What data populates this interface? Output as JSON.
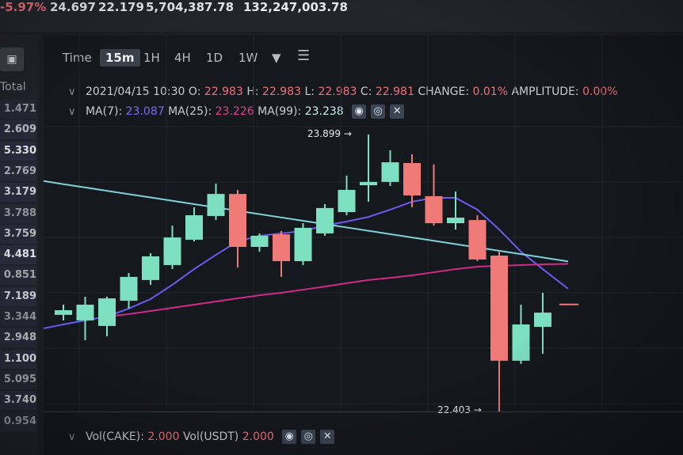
{
  "ticker_bar": {
    "change_pct": "-5.97%",
    "high": "24.697",
    "low": "22.179",
    "vol_base": "5,704,387.78",
    "vol_quote": "132,247,003.78"
  },
  "sidebar": {
    "header": "Total",
    "totals": [
      "1.471",
      "2.609",
      "5.330",
      "2.769",
      "3.179",
      "3.788",
      "3.759",
      "4.481",
      "0.851",
      "7.189",
      "3.344",
      "2.948",
      "1.100",
      "5.095",
      "3.740",
      "0.954"
    ]
  },
  "toolbar": {
    "timeframes": [
      "Time",
      "15m",
      "1H",
      "4H",
      "1D",
      "1W"
    ],
    "active": "15m",
    "more_icon": "triangle-down",
    "settings_icon": "sliders"
  },
  "ohlc": {
    "datetime": "2021/04/15 10:30",
    "o_label": "O:",
    "o": "22.983",
    "h_label": "H:",
    "h": "22.983",
    "l_label": "L:",
    "l": "22.983",
    "c_label": "C:",
    "c": "22.981",
    "change_label": "CHANGE:",
    "change": "0.01%",
    "amplitude_label": "AMPLITUDE:",
    "amplitude": "0.00%"
  },
  "ma": {
    "ma7_label": "MA(7):",
    "ma7": "23.087",
    "ma25_label": "MA(25):",
    "ma25": "23.226",
    "ma99_label": "MA(99):",
    "ma99": "23.238"
  },
  "volume": {
    "base_label": "Vol(CAKE):",
    "base": "2.000",
    "quote_label": "Vol(USDT)",
    "quote": "2.000"
  },
  "colors": {
    "up": "#7de0c0",
    "down": "#f07a78",
    "ma7": "#6a5cf0",
    "ma25": "#d02a8a",
    "ma99": "#7fd0d8",
    "background": "#15181d"
  },
  "chart_data": {
    "type": "candlestick",
    "interval": "15m",
    "ylim": [
      22.403,
      23.899
    ],
    "annotations": {
      "max": "23.899",
      "min": "22.403"
    },
    "last_price": 22.981,
    "candles": [
      {
        "o": 22.925,
        "h": 22.98,
        "l": 22.895,
        "c": 22.95
      },
      {
        "o": 22.895,
        "h": 23.023,
        "l": 22.788,
        "c": 22.98
      },
      {
        "o": 22.865,
        "h": 23.023,
        "l": 22.809,
        "c": 23.014
      },
      {
        "o": 23.001,
        "h": 23.151,
        "l": 22.959,
        "c": 23.13
      },
      {
        "o": 23.113,
        "h": 23.258,
        "l": 23.087,
        "c": 23.241
      },
      {
        "o": 23.194,
        "h": 23.407,
        "l": 23.172,
        "c": 23.343
      },
      {
        "o": 23.331,
        "h": 23.506,
        "l": 23.322,
        "c": 23.463
      },
      {
        "o": 23.459,
        "h": 23.634,
        "l": 23.437,
        "c": 23.578
      },
      {
        "o": 23.578,
        "h": 23.6,
        "l": 23.181,
        "c": 23.292
      },
      {
        "o": 23.292,
        "h": 23.365,
        "l": 23.266,
        "c": 23.352
      },
      {
        "o": 23.36,
        "h": 23.378,
        "l": 23.13,
        "c": 23.215
      },
      {
        "o": 23.215,
        "h": 23.42,
        "l": 23.194,
        "c": 23.395
      },
      {
        "o": 23.365,
        "h": 23.523,
        "l": 23.352,
        "c": 23.502
      },
      {
        "o": 23.48,
        "h": 23.677,
        "l": 23.463,
        "c": 23.6
      },
      {
        "o": 23.625,
        "h": 23.899,
        "l": 23.536,
        "c": 23.643
      },
      {
        "o": 23.643,
        "h": 23.814,
        "l": 23.621,
        "c": 23.749
      },
      {
        "o": 23.745,
        "h": 23.792,
        "l": 23.506,
        "c": 23.57
      },
      {
        "o": 23.566,
        "h": 23.737,
        "l": 23.407,
        "c": 23.42
      },
      {
        "o": 23.42,
        "h": 23.591,
        "l": 23.386,
        "c": 23.45
      },
      {
        "o": 23.437,
        "h": 23.463,
        "l": 23.215,
        "c": 23.224
      },
      {
        "o": 23.245,
        "h": 23.266,
        "l": 22.403,
        "c": 22.677
      },
      {
        "o": 22.677,
        "h": 22.98,
        "l": 22.66,
        "c": 22.873
      },
      {
        "o": 22.86,
        "h": 23.044,
        "l": 22.715,
        "c": 22.937
      }
    ],
    "series": [
      {
        "name": "MA(7)",
        "values": [
          22.873,
          22.895,
          22.916,
          22.959,
          23.01,
          23.087,
          23.172,
          23.249,
          23.322,
          23.352,
          23.365,
          23.378,
          23.407,
          23.429,
          23.454,
          23.493,
          23.536,
          23.557,
          23.557,
          23.493,
          23.386,
          23.266,
          23.172
        ]
      },
      {
        "name": "MA(25)",
        "values": [
          null,
          null,
          22.916,
          22.929,
          22.946,
          22.963,
          22.98,
          22.997,
          23.014,
          23.031,
          23.044,
          23.061,
          23.078,
          23.096,
          23.113,
          23.125,
          23.138,
          23.155,
          23.172,
          23.185,
          23.19,
          23.194,
          23.198
        ]
      },
      {
        "name": "MA(99)",
        "values": [
          23.631,
          23.613,
          23.595,
          23.577,
          23.559,
          23.541,
          23.523,
          23.505,
          23.487,
          23.469,
          23.451,
          23.433,
          23.415,
          23.397,
          23.379,
          23.361,
          23.343,
          23.325,
          23.307,
          23.289,
          23.271,
          23.253,
          23.235
        ]
      }
    ]
  }
}
